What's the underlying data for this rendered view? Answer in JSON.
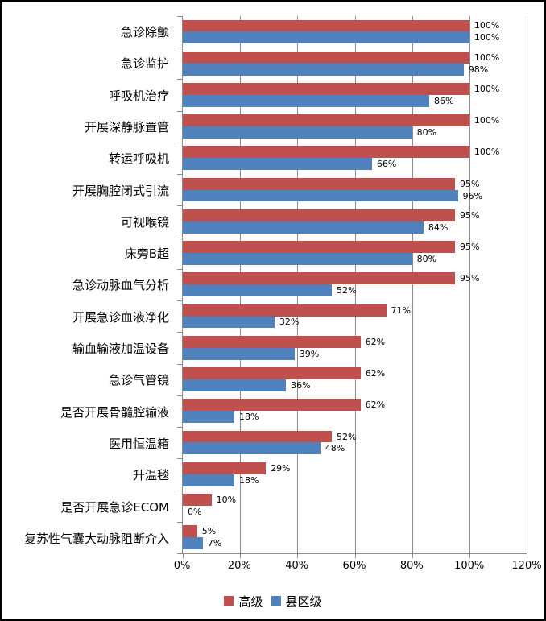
{
  "chart_data": {
    "type": "bar",
    "orientation": "horizontal",
    "title": "",
    "xlabel": "",
    "ylabel": "",
    "xlim": [
      0,
      120
    ],
    "grid": true,
    "legend_position": "bottom",
    "value_suffix": "%",
    "x_ticks": [
      "0%",
      "20%",
      "40%",
      "60%",
      "80%",
      "100%",
      "120%"
    ],
    "categories": [
      "急诊除颤",
      "急诊监护",
      "呼吸机治疗",
      "开展深静脉置管",
      "转运呼吸机",
      "开展胸腔闭式引流",
      "可视喉镜",
      "床旁B超",
      "急诊动脉血气分析",
      "开展急诊血液净化",
      "输血输液加温设备",
      "急诊气管镜",
      "是否开展骨髓腔输液",
      "医用恒温箱",
      "升温毯",
      "是否开展急诊ECOM",
      "复苏性气囊大动脉阻断介入"
    ],
    "series": [
      {
        "name": "高级",
        "color": "#C0504D",
        "values": [
          100,
          100,
          100,
          100,
          100,
          95,
          95,
          95,
          95,
          71,
          62,
          62,
          62,
          52,
          29,
          10,
          5
        ]
      },
      {
        "name": "县区级",
        "color": "#4F81BD",
        "values": [
          100,
          98,
          86,
          80,
          66,
          96,
          84,
          80,
          52,
          32,
          39,
          36,
          18,
          48,
          18,
          0,
          7
        ]
      }
    ]
  },
  "colors": {
    "grid": "#8C8C8C",
    "axis": "#8C8C8C",
    "background": "#FFFFFF",
    "border": "#000000",
    "text": "#000000"
  }
}
